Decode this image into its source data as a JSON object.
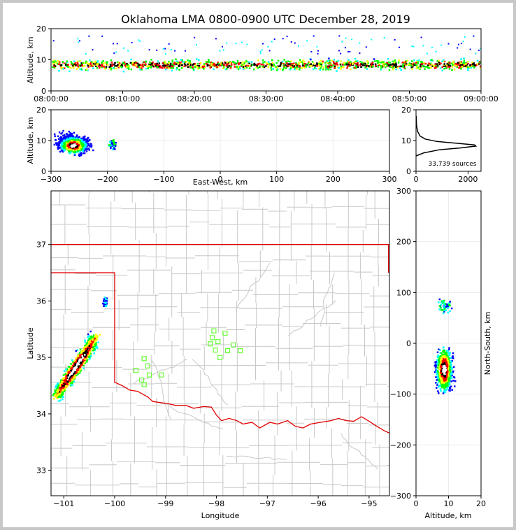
{
  "chart_data": [
    {
      "type": "scatter",
      "name": "time-altitude",
      "title": "Oklahoma LMA 0800-0900 UTC December 28, 2019",
      "xlabel": "",
      "ylabel": "Altitude, km",
      "x_ticks": [
        "08:00:00",
        "08:10:00",
        "08:20:00",
        "08:30:00",
        "08:40:00",
        "08:50:00",
        "09:00:00"
      ],
      "xlim_minutes": [
        0,
        60
      ],
      "ylim": [
        0,
        20
      ],
      "y_ticks": [
        0,
        10,
        20
      ],
      "core_altitude_km": [
        6,
        12
      ],
      "density_colors": [
        "#0000ff",
        "#00ffff",
        "#00ff00",
        "#ffff00",
        "#ff0000",
        "#000000"
      ]
    },
    {
      "type": "scatter",
      "name": "eastwest-altitude",
      "xlabel": "East-West, km",
      "ylabel": "Altitude, km",
      "xlim": [
        -300,
        300
      ],
      "x_ticks": [
        "−300",
        "−200",
        "−100",
        "0",
        "100",
        "200",
        "300"
      ],
      "ylim": [
        0,
        20
      ],
      "y_ticks": [
        0,
        10,
        20
      ],
      "core_ew_km": [
        -290,
        -235
      ],
      "secondary_ew_km": [
        -190,
        -185
      ]
    },
    {
      "type": "line",
      "name": "altitude-histogram",
      "xlim": [
        0,
        2500
      ],
      "x_ticks": [
        0,
        2000
      ],
      "ylim": [
        0,
        20
      ],
      "y_ticks": [
        0,
        10,
        20
      ],
      "annotation": "33,739 sources",
      "profile": [
        [
          0,
          5
        ],
        [
          300,
          6
        ],
        [
          900,
          7
        ],
        [
          1700,
          7.6
        ],
        [
          2300,
          8.2
        ],
        [
          2250,
          8.6
        ],
        [
          1600,
          9.1
        ],
        [
          800,
          9.7
        ],
        [
          350,
          10.5
        ],
        [
          150,
          11.5
        ],
        [
          60,
          13
        ],
        [
          20,
          15
        ],
        [
          5,
          18
        ]
      ]
    },
    {
      "type": "scatter",
      "name": "plan-view-map",
      "xlabel": "Longitude",
      "ylabel": "Latitude",
      "xlim": [
        -101.25,
        -94.6
      ],
      "x_ticks": [
        -101,
        -100,
        -99,
        -98,
        -97,
        -96,
        -95
      ],
      "ylim": [
        32.55,
        37.95
      ],
      "y_ticks": [
        33,
        34,
        35,
        36,
        37
      ],
      "core_lon": [
        -101.2,
        -100.5
      ],
      "core_lat": [
        34.2,
        35.4
      ],
      "station_markers": [
        [
          -98.05,
          35.47
        ],
        [
          -98.08,
          35.35
        ],
        [
          -98.12,
          35.24
        ],
        [
          -97.97,
          35.28
        ],
        [
          -97.83,
          35.43
        ],
        [
          -97.67,
          35.22
        ],
        [
          -97.78,
          35.12
        ],
        [
          -97.53,
          35.12
        ],
        [
          -98.02,
          35.13
        ],
        [
          -97.93,
          35.0
        ],
        [
          -99.42,
          34.98
        ],
        [
          -99.58,
          34.77
        ],
        [
          -99.35,
          34.85
        ],
        [
          -99.32,
          34.69
        ],
        [
          -99.08,
          34.69
        ],
        [
          -99.47,
          34.6
        ],
        [
          -99.42,
          34.52
        ]
      ]
    },
    {
      "type": "scatter",
      "name": "altitude-northsouth",
      "xlabel": "Altitude, km",
      "ylabel": "North-South, km",
      "xlim": [
        0,
        20
      ],
      "x_ticks": [
        0,
        10,
        20
      ],
      "ylim": [
        -300,
        300
      ],
      "y_ticks": [
        -300,
        -200,
        -100,
        0,
        100,
        200,
        300
      ],
      "y_tick_labels": [
        "−300",
        "−200",
        "−100",
        "0",
        "100",
        "200",
        "300"
      ],
      "core_ns_km": [
        -120,
        15
      ],
      "secondary_ns_km": [
        45,
        95
      ]
    }
  ]
}
